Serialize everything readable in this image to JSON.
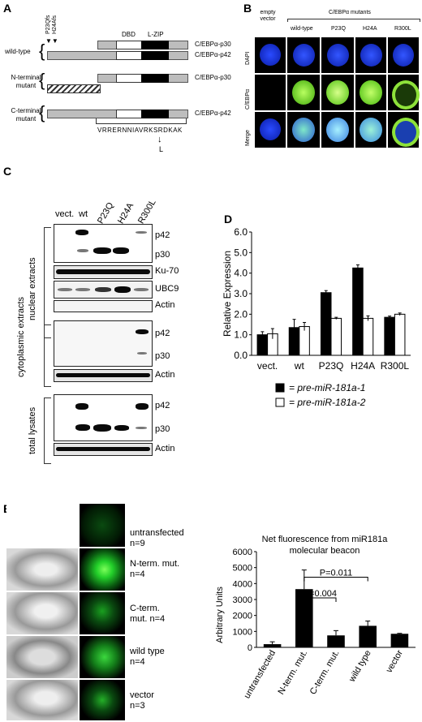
{
  "panels": {
    "A": {
      "label": "A",
      "mut_labels": [
        "P23Qfs",
        "H24Afs"
      ],
      "domain_labels": [
        "DBD",
        "L-ZIP"
      ],
      "rows": [
        {
          "group": "wild-type",
          "isoforms": [
            "C/EBPα-p30",
            "C/EBPα-p42"
          ]
        },
        {
          "group": "N-terminal mutant",
          "isoforms": [
            "C/EBPα-p30"
          ]
        },
        {
          "group": "C-terminal mutant",
          "isoforms": [
            "C/EBPα-p42"
          ]
        }
      ],
      "sequence": "VRRERNNIAVRKSRDKAK",
      "substitution": "L"
    },
    "B": {
      "label": "B",
      "header_group": "C/EBPα mutants",
      "columns": [
        "empty vector",
        "wild-type",
        "P23Q",
        "H24A",
        "R300L"
      ],
      "rows": [
        "DAPI",
        "C/EBPα",
        "Merge"
      ]
    },
    "C": {
      "label": "C",
      "lanes": [
        "vect.",
        "wt",
        "P23Q",
        "H24A",
        "R300L"
      ],
      "sections": [
        {
          "name": "nuclear extracts",
          "blots": [
            [
              "p42",
              "p30"
            ],
            [
              "Ku-70"
            ],
            [
              "UBC9"
            ],
            [
              "Actin"
            ]
          ]
        },
        {
          "name": "cytoplasmic extracts",
          "blots": [
            [
              "p42",
              "p30"
            ],
            [
              "Actin"
            ]
          ]
        },
        {
          "name": "total lysates",
          "blots": [
            [
              "p42",
              "p30"
            ],
            [
              "Actin"
            ]
          ]
        }
      ]
    },
    "D": {
      "label": "D"
    },
    "E": {
      "label": "E",
      "cells": [
        {
          "name": "untransfected",
          "n": "n=9"
        },
        {
          "name": "N-term. mut.",
          "n": "n=4"
        },
        {
          "name": "C-term. mut. n=4",
          "n": ""
        },
        {
          "name": "wild type",
          "n": "n=4"
        },
        {
          "name": "vector",
          "n": "n=3"
        }
      ]
    }
  },
  "chart_data": [
    {
      "type": "bar",
      "panel": "D",
      "title": "",
      "xlabel": "",
      "ylabel": "Relative Expression",
      "categories": [
        "vect.",
        "wt",
        "P23Q",
        "H24A",
        "R300L"
      ],
      "ylim": [
        0.0,
        6.0
      ],
      "yticks": [
        "0.0",
        "1.0",
        "2.0",
        "3.0",
        "4.0",
        "5.0",
        "6.0"
      ],
      "series": [
        {
          "name": "= pre-miR-181a-1",
          "values": [
            1.0,
            1.35,
            3.05,
            4.25,
            1.85
          ],
          "errors": [
            0.15,
            0.4,
            0.1,
            0.15,
            0.06
          ],
          "color": "#000000"
        },
        {
          "name": "= pre-miR-181a-2",
          "values": [
            1.05,
            1.4,
            1.8,
            1.8,
            2.0
          ],
          "errors": [
            0.25,
            0.2,
            0.05,
            0.12,
            0.06
          ],
          "color": "#ffffff"
        }
      ],
      "legend": "bottom",
      "grid": false
    },
    {
      "type": "bar",
      "panel": "E",
      "title": "Net fluorescence from miR181a molecular beacon",
      "xlabel": "",
      "ylabel": "Arbitrary Units",
      "categories": [
        "untransfected",
        "N-term. mut.",
        "C-term. mut.",
        "wild type",
        "vector"
      ],
      "values": [
        200,
        3650,
        750,
        1350,
        850
      ],
      "errors": [
        150,
        1200,
        300,
        300,
        30
      ],
      "ylim": [
        0,
        6000
      ],
      "yticks": [
        "0",
        "1000",
        "2000",
        "3000",
        "4000",
        "5000",
        "6000"
      ],
      "annotations": [
        "P=0.011",
        "P=0.004"
      ],
      "grid": false
    }
  ]
}
